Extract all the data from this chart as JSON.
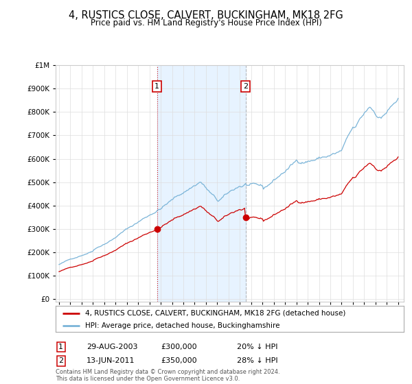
{
  "title": "4, RUSTICS CLOSE, CALVERT, BUCKINGHAM, MK18 2FG",
  "subtitle": "Price paid vs. HM Land Registry's House Price Index (HPI)",
  "hpi_label": "HPI: Average price, detached house, Buckinghamshire",
  "property_label": "4, RUSTICS CLOSE, CALVERT, BUCKINGHAM, MK18 2FG (detached house)",
  "hpi_color": "#7ab4d8",
  "property_color": "#cc0000",
  "marker_color": "#cc0000",
  "vline1_color": "#cc0000",
  "vline2_color": "#aaaaaa",
  "shade_color": "#ddeeff",
  "ylim": [
    0,
    1000000
  ],
  "yticks": [
    0,
    100000,
    200000,
    300000,
    400000,
    500000,
    600000,
    700000,
    800000,
    900000,
    1000000
  ],
  "transaction1": {
    "date": "29-AUG-2003",
    "price": 300000,
    "label": "1",
    "hpi_pct": "20% ↓ HPI",
    "x": 2003.667
  },
  "transaction2": {
    "date": "13-JUN-2011",
    "price": 350000,
    "label": "2",
    "hpi_pct": "28% ↓ HPI",
    "x": 2011.5
  },
  "footer": "Contains HM Land Registry data © Crown copyright and database right 2024.\nThis data is licensed under the Open Government Licence v3.0.",
  "background_color": "#ffffff",
  "grid_color": "#dddddd"
}
